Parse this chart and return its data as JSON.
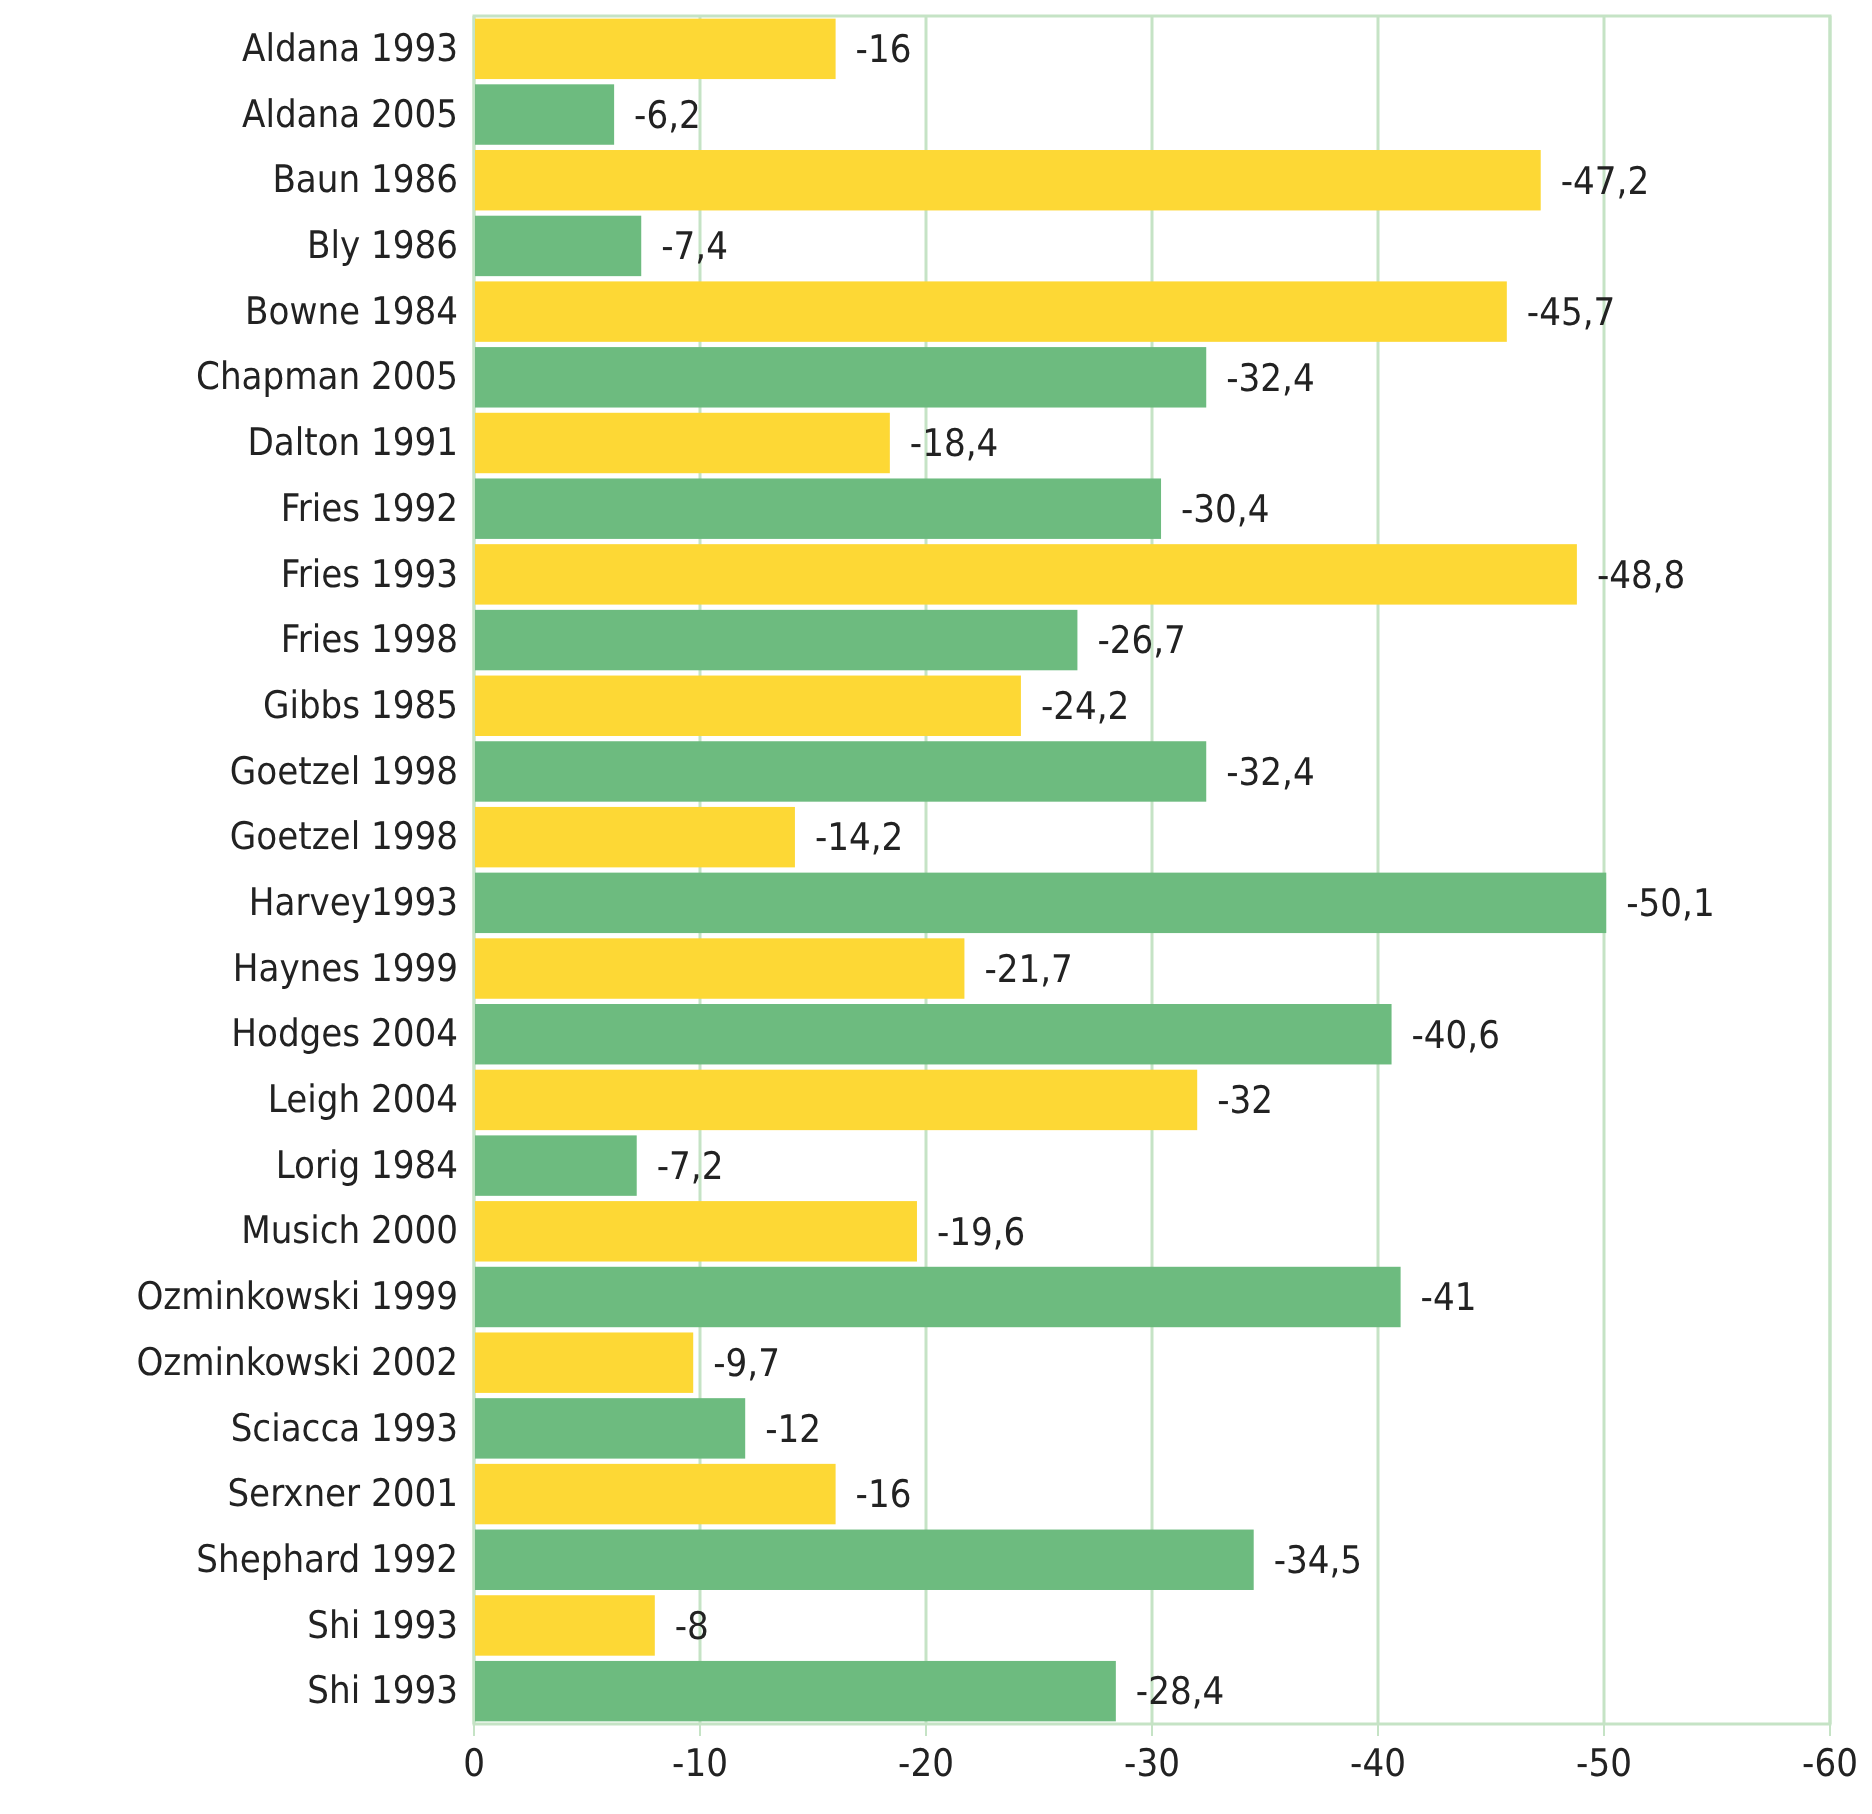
{
  "chart_data": {
    "type": "bar",
    "orientation": "horizontal",
    "categories": [
      "Aldana 1993",
      "Aldana 2005",
      "Baun 1986",
      "Bly 1986",
      "Bowne 1984",
      "Chapman 2005",
      "Dalton 1991",
      "Fries 1992",
      "Fries 1993",
      "Fries 1998",
      "Gibbs 1985",
      "Goetzel 1998",
      "Goetzel 1998",
      "Harvey1993",
      "Haynes 1999",
      "Hodges 2004",
      "Leigh 2004",
      "Lorig 1984",
      "Musich 2000",
      "Ozminkowski 1999",
      "Ozminkowski 2002",
      "Sciacca 1993",
      "Serxner 2001",
      "Shephard 1992",
      "Shi 1993",
      "Shi 1993"
    ],
    "values": [
      -16,
      -6.2,
      -47.2,
      -7.4,
      -45.7,
      -32.4,
      -18.4,
      -30.4,
      -48.8,
      -26.7,
      -24.2,
      -32.4,
      -14.2,
      -50.1,
      -21.7,
      -40.6,
      -32,
      -7.2,
      -19.6,
      -41,
      -9.7,
      -12,
      -16,
      -34.5,
      -8,
      -28.4
    ],
    "value_labels": [
      "-16",
      "-6,2",
      "-47,2",
      "-7,4",
      "-45,7",
      "-32,4",
      "-18,4",
      "-30,4",
      "-48,8",
      "-26,7",
      "-24,2",
      "-32,4",
      "-14,2",
      "-50,1",
      "-21,7",
      "-40,6",
      "-32",
      "-7,2",
      "-19,6",
      "-41",
      "-9,7",
      "-12",
      "-16",
      "-34,5",
      "-8",
      "-28,4"
    ],
    "colors": [
      "#fdd835",
      "#6dbb7f",
      "#fdd835",
      "#6dbb7f",
      "#fdd835",
      "#6dbb7f",
      "#fdd835",
      "#6dbb7f",
      "#fdd835",
      "#6dbb7f",
      "#fdd835",
      "#6dbb7f",
      "#fdd835",
      "#6dbb7f",
      "#fdd835",
      "#6dbb7f",
      "#fdd835",
      "#6dbb7f",
      "#fdd835",
      "#6dbb7f",
      "#fdd835",
      "#6dbb7f",
      "#fdd835",
      "#6dbb7f",
      "#fdd835",
      "#6dbb7f"
    ],
    "xlim": [
      0,
      -60
    ],
    "xticks": [
      0,
      -10,
      -20,
      -30,
      -40,
      -50,
      -60
    ],
    "grid": "x"
  }
}
